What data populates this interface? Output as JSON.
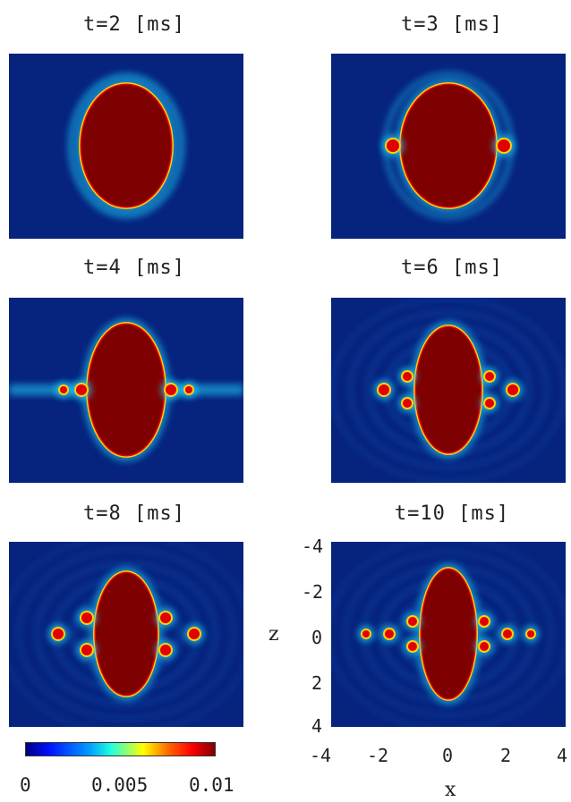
{
  "panels": [
    {
      "title": "t=2  [ms]",
      "stage": 2
    },
    {
      "title": "t=3  [ms]",
      "stage": 3
    },
    {
      "title": "t=4  [ms]",
      "stage": 4
    },
    {
      "title": "t=6  [ms]",
      "stage": 6
    },
    {
      "title": "t=8  [ms]",
      "stage": 8
    },
    {
      "title": "t=10  [ms]",
      "stage": 10
    }
  ],
  "axes": {
    "xlabel": "x",
    "zlabel": "z",
    "x_ticks": [
      "-4",
      "-2",
      "0",
      "2",
      "4"
    ],
    "z_ticks": [
      "-4",
      "-2",
      "0",
      "2",
      "4"
    ]
  },
  "colorbar": {
    "tick_labels": [
      "0",
      "0.005",
      "0.01"
    ],
    "range": [
      0,
      0.01
    ]
  },
  "chart_data": {
    "type": "heatmap",
    "x_range": [
      -4,
      4
    ],
    "z_range": [
      -4,
      4
    ],
    "color_range": [
      0,
      0.01
    ],
    "times_ms": [
      2,
      3,
      4,
      6,
      8,
      10
    ],
    "colormap": [
      "#00007f",
      "#0010ff",
      "#00a0ff",
      "#20ffe0",
      "#ffff00",
      "#ff6000",
      "#ff0000",
      "#7f0000"
    ]
  }
}
